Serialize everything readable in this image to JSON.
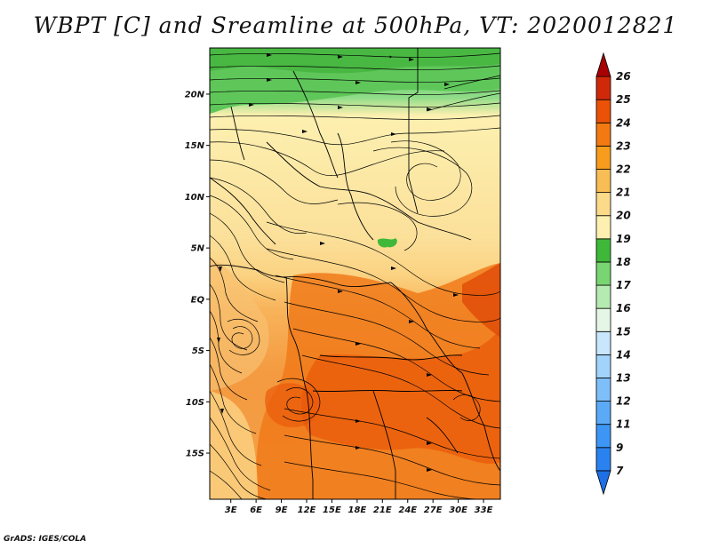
{
  "title": "WBPT [C] and Sreamline at 500hPa, VT: 2020012821",
  "credit": "GrADS: IGES/COLA",
  "map": {
    "lat_labels": [
      "20N",
      "15N",
      "10N",
      "5N",
      "EQ",
      "5S",
      "10S",
      "15S"
    ],
    "lat_values": [
      20,
      15,
      10,
      5,
      0,
      -5,
      -10,
      -15
    ],
    "lon_labels": [
      "3E",
      "6E",
      "9E",
      "12E",
      "15E",
      "18E",
      "21E",
      "24E",
      "27E",
      "30E",
      "33E"
    ],
    "lon_values": [
      3,
      6,
      9,
      12,
      15,
      18,
      21,
      24,
      27,
      30,
      33
    ],
    "lat_range": [
      -19.5,
      24.5
    ],
    "lon_range": [
      0.5,
      35
    ]
  },
  "colorbar": {
    "levels": [
      "7",
      "9",
      "11",
      "12",
      "13",
      "14",
      "15",
      "16",
      "17",
      "18",
      "19",
      "20",
      "21",
      "22",
      "23",
      "24",
      "25",
      "26"
    ],
    "colors": [
      "#1e6fe6",
      "#2a82f0",
      "#3d96f5",
      "#5aaaf8",
      "#7ebff9",
      "#a2d3fb",
      "#c8e6fc",
      "#e6f6e6",
      "#b5eab0",
      "#79d472",
      "#3fb83a",
      "#fdf0b0",
      "#fbdb8a",
      "#f8bd55",
      "#f79c1c",
      "#f27a10",
      "#ea5208",
      "#d0290a",
      "#a70005"
    ]
  }
}
